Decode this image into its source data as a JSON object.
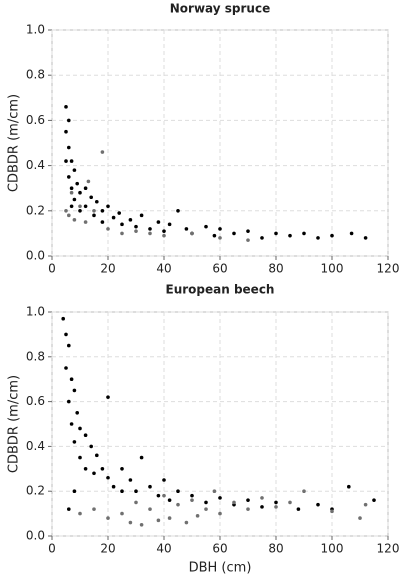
{
  "chart_data": [
    {
      "type": "scatter",
      "title": "Norway spruce",
      "y_label": "CDBDR (m/cm)",
      "xlim": [
        0,
        120
      ],
      "ylim": [
        0,
        1
      ],
      "xticks": [
        0,
        20,
        40,
        60,
        80,
        100,
        120
      ],
      "yticks": [
        {
          "value": 0,
          "label": "0.0"
        },
        {
          "value": 0.2,
          "label": "0.2"
        },
        {
          "value": 0.4,
          "label": "0.4"
        },
        {
          "value": 0.6,
          "label": "0.6"
        },
        {
          "value": 0.8,
          "label": "0.8"
        },
        {
          "value": 1,
          "label": "1.0"
        }
      ],
      "grid": true,
      "series": [
        {
          "color": "#000000",
          "x": [
            5,
            5,
            6,
            6,
            7,
            7,
            8,
            8,
            9,
            10,
            10,
            12,
            12,
            14,
            15,
            16,
            18,
            18,
            20,
            22,
            24,
            25,
            28,
            30,
            32,
            35,
            38,
            40,
            42,
            45,
            48,
            50,
            55,
            58,
            60,
            65,
            70,
            75,
            80,
            85,
            90,
            95,
            100,
            107,
            112,
            6,
            5,
            7
          ],
          "values": [
            0.66,
            0.55,
            0.48,
            0.35,
            0.42,
            0.3,
            0.38,
            0.25,
            0.32,
            0.28,
            0.2,
            0.3,
            0.22,
            0.26,
            0.18,
            0.24,
            0.2,
            0.15,
            0.22,
            0.17,
            0.19,
            0.14,
            0.16,
            0.13,
            0.18,
            0.12,
            0.15,
            0.11,
            0.14,
            0.2,
            0.12,
            0.1,
            0.13,
            0.09,
            0.12,
            0.1,
            0.11,
            0.08,
            0.1,
            0.09,
            0.1,
            0.08,
            0.09,
            0.1,
            0.08,
            0.6,
            0.42,
            0.22
          ]
        },
        {
          "color": "#707070",
          "x": [
            5,
            6,
            7,
            8,
            10,
            12,
            15,
            18,
            20,
            25,
            30,
            35,
            40,
            50,
            60,
            70,
            13
          ],
          "values": [
            0.2,
            0.18,
            0.28,
            0.16,
            0.22,
            0.15,
            0.2,
            0.46,
            0.12,
            0.1,
            0.11,
            0.1,
            0.09,
            0.1,
            0.08,
            0.07,
            0.33
          ]
        }
      ]
    },
    {
      "type": "scatter",
      "title": "European beech",
      "x_label": "DBH (cm)",
      "y_label": "CDBDR (m/cm)",
      "xlim": [
        0,
        120
      ],
      "ylim": [
        0,
        1
      ],
      "xticks": [
        0,
        20,
        40,
        60,
        80,
        100,
        120
      ],
      "yticks": [
        {
          "value": 0,
          "label": "0.0"
        },
        {
          "value": 0.2,
          "label": "0.2"
        },
        {
          "value": 0.4,
          "label": "0.4"
        },
        {
          "value": 0.6,
          "label": "0.6"
        },
        {
          "value": 0.8,
          "label": "0.8"
        },
        {
          "value": 1,
          "label": "1.0"
        }
      ],
      "grid": true,
      "series": [
        {
          "color": "#000000",
          "x": [
            4,
            5,
            5,
            6,
            6,
            7,
            7,
            8,
            8,
            9,
            10,
            10,
            12,
            12,
            14,
            15,
            16,
            18,
            20,
            20,
            22,
            25,
            25,
            28,
            30,
            32,
            35,
            38,
            40,
            42,
            45,
            50,
            55,
            60,
            65,
            70,
            75,
            80,
            88,
            95,
            100,
            106,
            115,
            6,
            8
          ],
          "values": [
            0.97,
            0.9,
            0.75,
            0.85,
            0.6,
            0.7,
            0.5,
            0.65,
            0.42,
            0.55,
            0.48,
            0.35,
            0.45,
            0.3,
            0.4,
            0.28,
            0.36,
            0.3,
            0.26,
            0.62,
            0.22,
            0.3,
            0.2,
            0.25,
            0.2,
            0.35,
            0.22,
            0.18,
            0.25,
            0.16,
            0.2,
            0.18,
            0.15,
            0.17,
            0.14,
            0.16,
            0.13,
            0.15,
            0.12,
            0.14,
            0.12,
            0.22,
            0.16,
            0.12,
            0.2
          ]
        },
        {
          "color": "#707070",
          "x": [
            10,
            15,
            20,
            25,
            28,
            30,
            32,
            35,
            38,
            40,
            42,
            45,
            48,
            50,
            52,
            55,
            58,
            60,
            65,
            70,
            75,
            80,
            85,
            90,
            100,
            110,
            112
          ],
          "values": [
            0.1,
            0.12,
            0.08,
            0.1,
            0.06,
            0.15,
            0.05,
            0.12,
            0.07,
            0.18,
            0.08,
            0.14,
            0.06,
            0.16,
            0.09,
            0.12,
            0.2,
            0.1,
            0.15,
            0.12,
            0.17,
            0.13,
            0.15,
            0.2,
            0.11,
            0.08,
            0.14
          ]
        }
      ]
    }
  ]
}
